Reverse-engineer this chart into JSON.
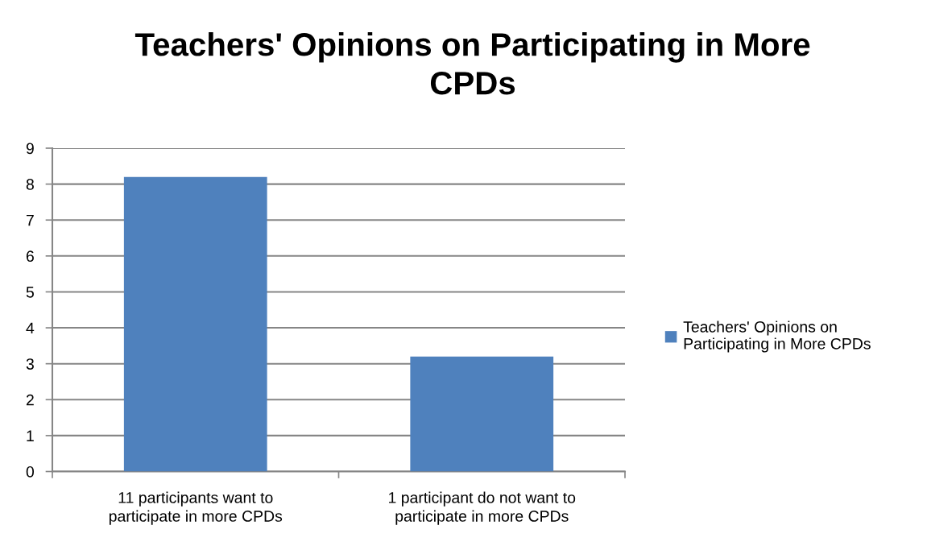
{
  "chart_data": {
    "type": "bar",
    "title": "Teachers' Opinions on Participating in More CPDs",
    "categories": [
      "11 participants want to participate in more CPDs",
      "1 participant do not want to participate in more CPDs"
    ],
    "series": [
      {
        "name": "Teachers' Opinions on Participating in More CPDs",
        "color": "#4f81bd",
        "values": [
          8.2,
          3.2
        ]
      }
    ],
    "ylim": [
      0,
      9
    ],
    "yticks": [
      0,
      1,
      2,
      3,
      4,
      5,
      6,
      7,
      8,
      9
    ],
    "grid": "y",
    "legend": "right"
  }
}
